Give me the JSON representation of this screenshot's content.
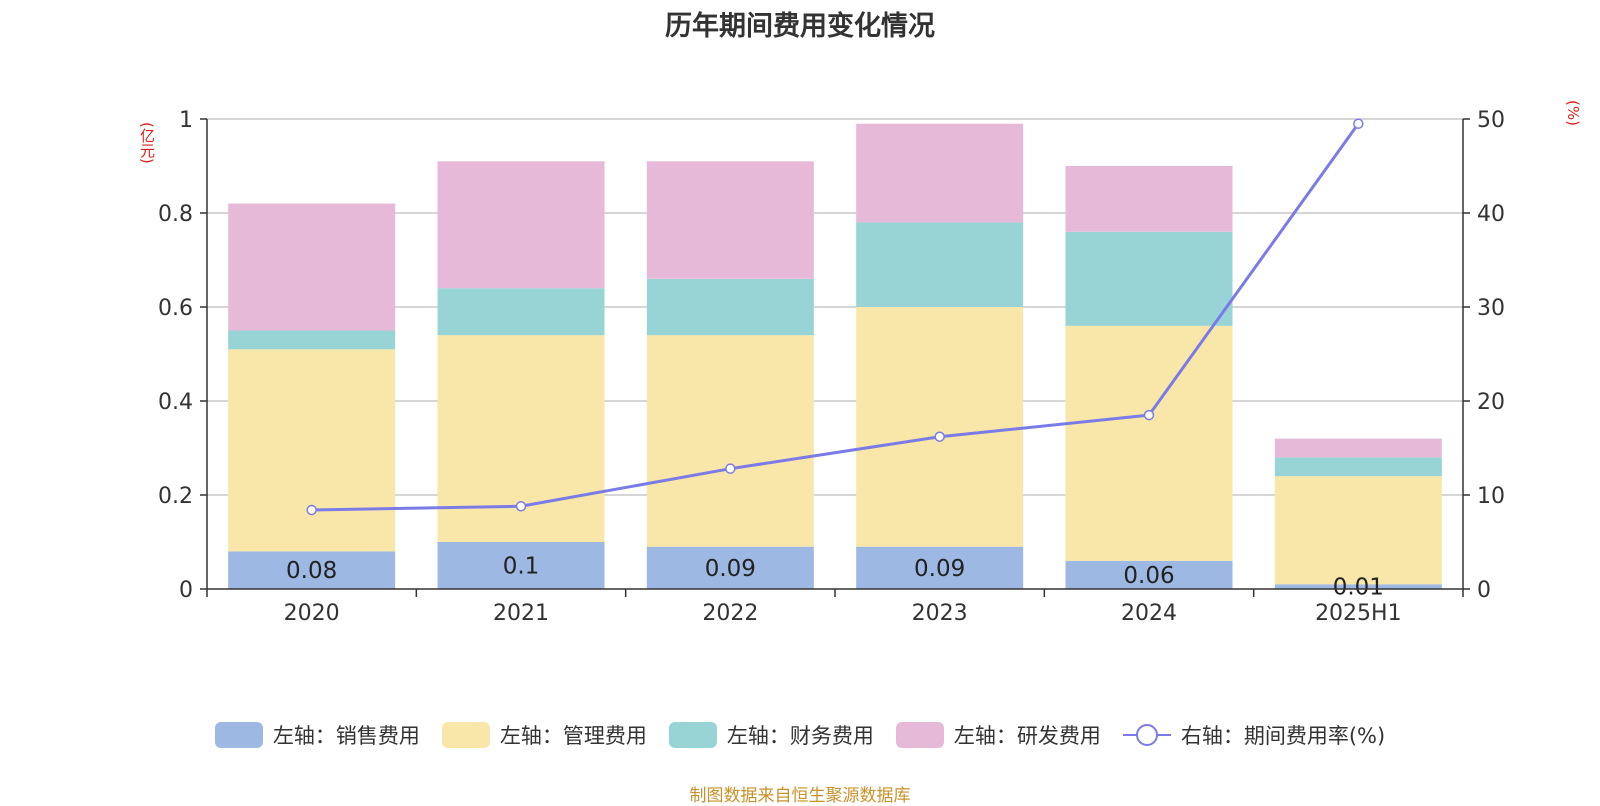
{
  "chart_data": {
    "type": "bar",
    "title": "历年期间费用变化情况",
    "categories": [
      "2020",
      "2021",
      "2022",
      "2023",
      "2024",
      "2025H1"
    ],
    "stacked": true,
    "series": [
      {
        "name": "左轴：销售费用",
        "axis": "left",
        "color": "#9db8e2",
        "values": [
          0.08,
          0.1,
          0.09,
          0.09,
          0.06,
          0.01
        ]
      },
      {
        "name": "左轴：管理费用",
        "axis": "left",
        "color": "#f8e7a8",
        "values": [
          0.43,
          0.44,
          0.45,
          0.51,
          0.5,
          0.23
        ]
      },
      {
        "name": "左轴：财务费用",
        "axis": "left",
        "color": "#98d4d6",
        "values": [
          0.04,
          0.1,
          0.12,
          0.18,
          0.2,
          0.04
        ]
      },
      {
        "name": "左轴：研发费用",
        "axis": "left",
        "color": "#e7b9d9",
        "values": [
          0.27,
          0.27,
          0.25,
          0.21,
          0.14,
          0.04
        ]
      },
      {
        "name": "右轴：期间费用率(%)",
        "axis": "right",
        "type": "line",
        "color": "#7b7be8",
        "values": [
          8.4,
          8.8,
          12.8,
          16.2,
          18.5,
          49.5
        ]
      }
    ],
    "data_labels": [
      "0.08",
      "0.1",
      "0.09",
      "0.09",
      "0.06",
      "0.01"
    ],
    "left_axis": {
      "label": "(亿元)",
      "range": [
        0,
        1
      ],
      "ticks": [
        "0",
        "0.2",
        "0.4",
        "0.6",
        "0.8",
        "1"
      ]
    },
    "right_axis": {
      "label": "(%)",
      "range": [
        0,
        50
      ],
      "ticks": [
        "0",
        "10",
        "20",
        "30",
        "40",
        "50"
      ]
    },
    "grid": true,
    "legend_position": "bottom"
  },
  "source": "制图数据来自恒生聚源数据库"
}
